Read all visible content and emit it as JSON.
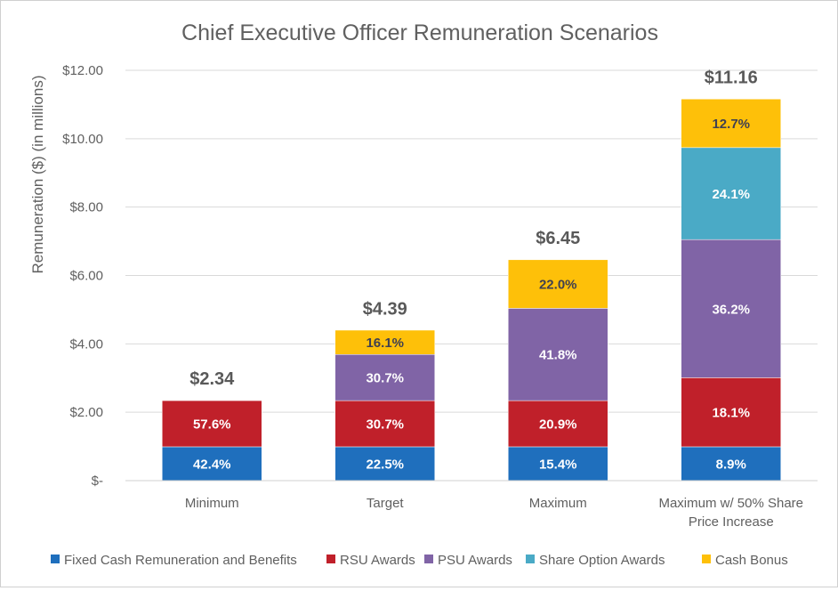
{
  "chart_data": {
    "type": "bar",
    "stacked": true,
    "title": "Chief Executive Officer Remuneration Scenarios",
    "xlabel": "",
    "ylabel": "Remuneration ($) (in millions)",
    "ylim": [
      0,
      12
    ],
    "yticks": [
      0,
      2,
      4,
      6,
      8,
      10,
      12
    ],
    "ytick_labels": [
      "$-",
      "$2.00",
      "$4.00",
      "$6.00",
      "$8.00",
      "$10.00",
      "$12.00"
    ],
    "grid": true,
    "legend_position": "bottom",
    "categories": [
      "Minimum",
      "Target",
      "Maximum",
      "Maximum w/ 50% Share|Price Increase"
    ],
    "totals": [
      2.34,
      4.39,
      6.45,
      11.16
    ],
    "total_labels": [
      "$2.34",
      "$4.39",
      "$6.45",
      "$11.16"
    ],
    "series": [
      {
        "name": "Fixed Cash Remuneration and Benefits",
        "color": "#1f6fbd",
        "label_color": "#ffffff",
        "values": [
          0.99,
          0.99,
          0.99,
          0.99
        ],
        "labels": [
          "42.4%",
          "22.5%",
          "15.4%",
          "8.9%"
        ]
      },
      {
        "name": "RSU Awards",
        "color": "#c0202a",
        "label_color": "#ffffff",
        "values": [
          1.35,
          1.35,
          1.35,
          2.02
        ],
        "labels": [
          "57.6%",
          "30.7%",
          "20.9%",
          "18.1%"
        ]
      },
      {
        "name": "PSU Awards",
        "color": "#8064a6",
        "label_color": "#ffffff",
        "values": [
          0,
          1.35,
          2.7,
          4.04
        ],
        "labels": [
          "",
          "30.7%",
          "41.8%",
          "36.2%"
        ]
      },
      {
        "name": "Share Option Awards",
        "color": "#4aaac6",
        "label_color": "#ffffff",
        "values": [
          0,
          0,
          0,
          2.69
        ],
        "labels": [
          "",
          "",
          "",
          "24.1%"
        ]
      },
      {
        "name": "Cash Bonus",
        "color": "#fec009",
        "label_color": "#404050",
        "values": [
          0,
          0.71,
          1.42,
          1.42
        ],
        "labels": [
          "",
          "16.1%",
          "22.0%",
          "12.7%"
        ]
      }
    ]
  }
}
